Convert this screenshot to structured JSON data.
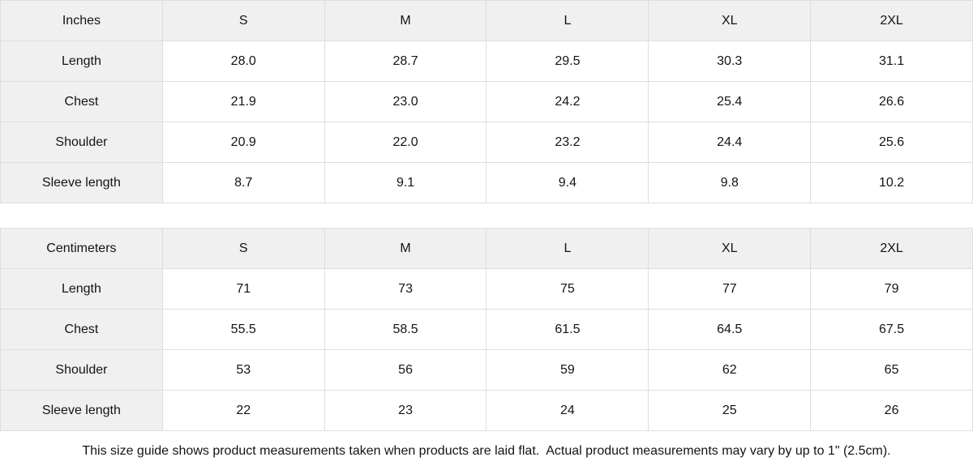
{
  "theme": {
    "header_bg": "#f0f0f0",
    "border_color": "#dedede",
    "cell_bg": "#ffffff",
    "text_color": "#141414"
  },
  "chart_data": [
    {
      "type": "table",
      "title": "Inches",
      "columns": [
        "Inches",
        "S",
        "M",
        "L",
        "XL",
        "2XL"
      ],
      "rows": [
        [
          "Length",
          "28.0",
          "28.7",
          "29.5",
          "30.3",
          "31.1"
        ],
        [
          "Chest",
          "21.9",
          "23.0",
          "24.2",
          "25.4",
          "26.6"
        ],
        [
          "Shoulder",
          "20.9",
          "22.0",
          "23.2",
          "24.4",
          "25.6"
        ],
        [
          "Sleeve length",
          "8.7",
          "9.1",
          "9.4",
          "9.8",
          "10.2"
        ]
      ]
    },
    {
      "type": "table",
      "title": "Centimeters",
      "columns": [
        "Centimeters",
        "S",
        "M",
        "L",
        "XL",
        "2XL"
      ],
      "rows": [
        [
          "Length",
          "71",
          "73",
          "75",
          "77",
          "79"
        ],
        [
          "Chest",
          "55.5",
          "58.5",
          "61.5",
          "64.5",
          "67.5"
        ],
        [
          "Shoulder",
          "53",
          "56",
          "59",
          "62",
          "65"
        ],
        [
          "Sleeve length",
          "22",
          "23",
          "24",
          "25",
          "26"
        ]
      ]
    }
  ],
  "footer": {
    "note": "This size guide shows product measurements taken when products are laid flat.  Actual product measurements may vary by up to 1\" (2.5cm)."
  }
}
